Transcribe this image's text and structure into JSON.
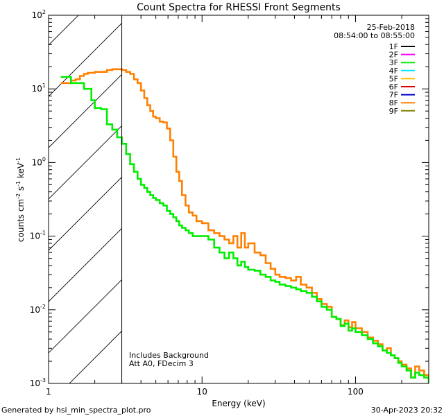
{
  "chart_data": {
    "type": "line",
    "title": "Count Spectra for RHESSI Front Segments",
    "xlabel": "Energy (keV)",
    "ylabel": "counts cm",
    "ylabel_sup1": "-2",
    "ylabel_mid": " s",
    "ylabel_sup2": "-1",
    "ylabel_mid2": " keV",
    "ylabel_sup3": "-1",
    "x_scale": "log",
    "y_scale": "log",
    "xlim": [
      1,
      300
    ],
    "ylim": [
      0.001,
      100
    ],
    "x_ticks": [
      {
        "value": 1,
        "label": "1"
      },
      {
        "value": 10,
        "label": "10"
      },
      {
        "value": 100,
        "label": "100"
      }
    ],
    "y_ticks": [
      {
        "value": 0.001,
        "base": "10",
        "exp": "-3"
      },
      {
        "value": 0.01,
        "base": "10",
        "exp": "-2"
      },
      {
        "value": 0.1,
        "base": "10",
        "exp": "-1"
      },
      {
        "value": 1,
        "base": "10",
        "exp": "0"
      },
      {
        "value": 10,
        "base": "10",
        "exp": "1"
      },
      {
        "value": 100,
        "base": "10",
        "exp": "2"
      }
    ],
    "date": "25-Feb-2018",
    "time_range": "08:54:00 to 08:55:00",
    "legend": [
      {
        "label": "1F",
        "color": "#000000"
      },
      {
        "label": "2F",
        "color": "#ff00ff"
      },
      {
        "label": "3F",
        "color": "#00ee00"
      },
      {
        "label": "4F",
        "color": "#00e5ff"
      },
      {
        "label": "5F",
        "color": "#ffc400"
      },
      {
        "label": "6F",
        "color": "#dd0000"
      },
      {
        "label": "7F",
        "color": "#0000cc"
      },
      {
        "label": "8F",
        "color": "#ff8000"
      },
      {
        "label": "9F",
        "color": "#808000"
      }
    ],
    "shaded_region": {
      "from": 1,
      "to": 3
    },
    "annotations": [
      "Includes Background",
      "Att A0, FDecim 3"
    ],
    "series": [
      {
        "name": "8F",
        "color": "#ff8000",
        "points": [
          [
            1.2,
            12
          ],
          [
            1.3,
            12
          ],
          [
            1.4,
            13
          ],
          [
            1.5,
            13.5
          ],
          [
            1.6,
            15
          ],
          [
            1.7,
            16
          ],
          [
            1.8,
            16.5
          ],
          [
            1.9,
            16.5
          ],
          [
            2.0,
            17
          ],
          [
            2.2,
            17
          ],
          [
            2.4,
            18
          ],
          [
            2.6,
            18.5
          ],
          [
            2.8,
            18.5
          ],
          [
            3.0,
            18
          ],
          [
            3.2,
            17
          ],
          [
            3.4,
            16
          ],
          [
            3.6,
            13.5
          ],
          [
            3.8,
            12
          ],
          [
            4.0,
            9.5
          ],
          [
            4.2,
            7.5
          ],
          [
            4.4,
            6.0
          ],
          [
            4.6,
            5.0
          ],
          [
            4.8,
            4.2
          ],
          [
            5.0,
            4.0
          ],
          [
            5.3,
            3.6
          ],
          [
            5.6,
            3.5
          ],
          [
            5.9,
            2.9
          ],
          [
            6.2,
            2.0
          ],
          [
            6.5,
            1.2
          ],
          [
            6.8,
            0.75
          ],
          [
            7.1,
            0.56
          ],
          [
            7.4,
            0.36
          ],
          [
            7.8,
            0.26
          ],
          [
            8.2,
            0.21
          ],
          [
            8.7,
            0.19
          ],
          [
            9.2,
            0.16
          ],
          [
            10,
            0.15
          ],
          [
            11,
            0.12
          ],
          [
            12,
            0.11
          ],
          [
            13,
            0.1
          ],
          [
            14,
            0.09
          ],
          [
            15,
            0.08
          ],
          [
            16,
            0.1
          ],
          [
            17,
            0.07
          ],
          [
            18,
            0.11
          ],
          [
            19,
            0.07
          ],
          [
            20,
            0.08
          ],
          [
            22,
            0.06
          ],
          [
            24,
            0.055
          ],
          [
            26,
            0.043
          ],
          [
            28,
            0.036
          ],
          [
            30,
            0.03
          ],
          [
            32,
            0.028
          ],
          [
            35,
            0.027
          ],
          [
            38,
            0.025
          ],
          [
            41,
            0.028
          ],
          [
            44,
            0.022
          ],
          [
            48,
            0.02
          ],
          [
            52,
            0.017
          ],
          [
            56,
            0.014
          ],
          [
            60,
            0.012
          ],
          [
            65,
            0.011
          ],
          [
            70,
            0.008
          ],
          [
            75,
            0.0075
          ],
          [
            80,
            0.0062
          ],
          [
            85,
            0.0072
          ],
          [
            90,
            0.0058
          ],
          [
            95,
            0.0068
          ],
          [
            100,
            0.0056
          ],
          [
            110,
            0.005
          ],
          [
            120,
            0.0042
          ],
          [
            130,
            0.0038
          ],
          [
            140,
            0.0034
          ],
          [
            150,
            0.0028
          ],
          [
            160,
            0.003
          ],
          [
            170,
            0.0024
          ],
          [
            180,
            0.0022
          ],
          [
            190,
            0.002
          ],
          [
            200,
            0.0018
          ],
          [
            215,
            0.0016
          ],
          [
            230,
            0.0012
          ],
          [
            245,
            0.0017
          ],
          [
            260,
            0.0015
          ],
          [
            280,
            0.0013
          ],
          [
            300,
            0.0011
          ]
        ]
      },
      {
        "name": "3F",
        "color": "#00ee00",
        "points": [
          [
            1.2,
            14.5
          ],
          [
            1.3,
            14.5
          ],
          [
            1.4,
            12
          ],
          [
            1.5,
            12
          ],
          [
            1.6,
            12
          ],
          [
            1.7,
            10
          ],
          [
            1.8,
            10
          ],
          [
            1.9,
            7
          ],
          [
            2.0,
            5.5
          ],
          [
            2.2,
            5.3
          ],
          [
            2.4,
            3.3
          ],
          [
            2.6,
            2.8
          ],
          [
            2.8,
            2.2
          ],
          [
            3.0,
            1.8
          ],
          [
            3.2,
            1.3
          ],
          [
            3.4,
            0.95
          ],
          [
            3.6,
            0.75
          ],
          [
            3.8,
            0.6
          ],
          [
            4.0,
            0.5
          ],
          [
            4.2,
            0.45
          ],
          [
            4.4,
            0.4
          ],
          [
            4.6,
            0.36
          ],
          [
            4.8,
            0.33
          ],
          [
            5.0,
            0.31
          ],
          [
            5.3,
            0.28
          ],
          [
            5.6,
            0.26
          ],
          [
            5.9,
            0.22
          ],
          [
            6.2,
            0.2
          ],
          [
            6.5,
            0.18
          ],
          [
            6.8,
            0.16
          ],
          [
            7.1,
            0.14
          ],
          [
            7.4,
            0.13
          ],
          [
            7.8,
            0.12
          ],
          [
            8.2,
            0.11
          ],
          [
            8.7,
            0.1
          ],
          [
            9.2,
            0.1
          ],
          [
            10,
            0.1
          ],
          [
            11,
            0.09
          ],
          [
            12,
            0.07
          ],
          [
            13,
            0.06
          ],
          [
            14,
            0.05
          ],
          [
            15,
            0.06
          ],
          [
            16,
            0.05
          ],
          [
            17,
            0.04
          ],
          [
            18,
            0.045
          ],
          [
            19,
            0.038
          ],
          [
            20,
            0.035
          ],
          [
            22,
            0.034
          ],
          [
            24,
            0.03
          ],
          [
            26,
            0.028
          ],
          [
            28,
            0.025
          ],
          [
            30,
            0.024
          ],
          [
            32,
            0.022
          ],
          [
            35,
            0.021
          ],
          [
            38,
            0.02
          ],
          [
            41,
            0.019
          ],
          [
            44,
            0.018
          ],
          [
            48,
            0.017
          ],
          [
            52,
            0.015
          ],
          [
            56,
            0.013
          ],
          [
            60,
            0.011
          ],
          [
            65,
            0.01
          ],
          [
            70,
            0.008
          ],
          [
            75,
            0.0075
          ],
          [
            80,
            0.006
          ],
          [
            85,
            0.0065
          ],
          [
            90,
            0.0052
          ],
          [
            95,
            0.0056
          ],
          [
            100,
            0.005
          ],
          [
            110,
            0.0045
          ],
          [
            120,
            0.004
          ],
          [
            130,
            0.0035
          ],
          [
            140,
            0.0032
          ],
          [
            150,
            0.0028
          ],
          [
            160,
            0.0026
          ],
          [
            170,
            0.0024
          ],
          [
            180,
            0.0022
          ],
          [
            190,
            0.0019
          ],
          [
            200,
            0.0017
          ],
          [
            215,
            0.0015
          ],
          [
            230,
            0.0012
          ],
          [
            245,
            0.0014
          ],
          [
            260,
            0.0013
          ],
          [
            280,
            0.0012
          ],
          [
            300,
            0.001
          ]
        ]
      }
    ]
  },
  "footer": {
    "generated_by": "Generated by hsi_min_spectra_plot.pro",
    "timestamp": "30-Apr-2023 20:32"
  }
}
